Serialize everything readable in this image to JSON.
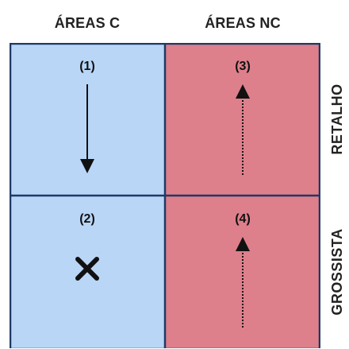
{
  "columns": {
    "c": "ÁREAS C",
    "nc": "ÁREAS NC"
  },
  "rows": {
    "retalho": "RETALHO",
    "grossista": "GROSSISTA"
  },
  "cells": {
    "cell_1": {
      "label": "(1)",
      "marker": "arrow-down-solid"
    },
    "cell_2": {
      "label": "(2)",
      "marker": "cross"
    },
    "cell_3": {
      "label": "(3)",
      "marker": "arrow-up-dotted"
    },
    "cell_4": {
      "label": "(4)",
      "marker": "arrow-up-dotted"
    }
  },
  "colors": {
    "areas_c": "#b9d6f7",
    "areas_nc": "#de7f8c",
    "border": "#1f3a66"
  }
}
